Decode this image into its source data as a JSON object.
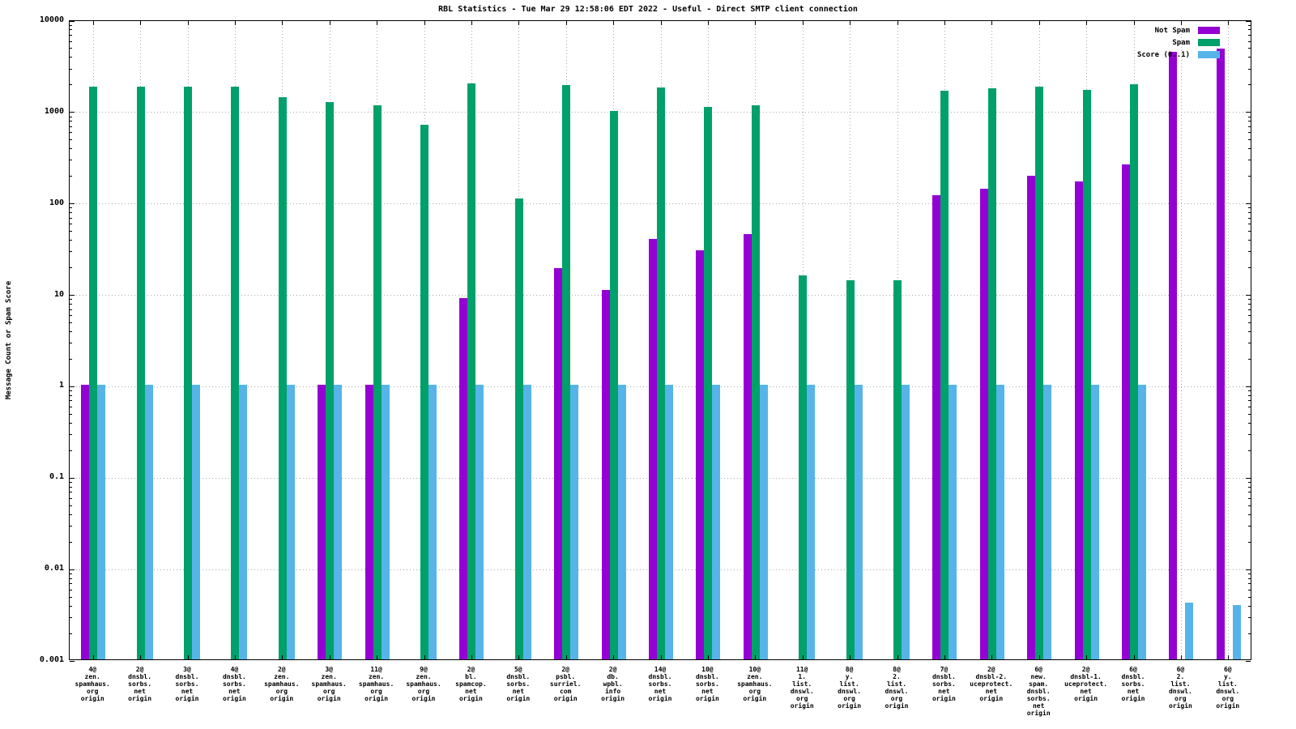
{
  "title": "RBL Statistics - Tue Mar 29 12:58:06 EDT 2022 - Useful - Direct SMTP client connection",
  "ylabel": "Message Count or Spam Score",
  "chart_data": {
    "type": "bar",
    "yscale": "log",
    "ylim": [
      0.001,
      10000
    ],
    "ytick_labels": [
      "10000",
      "1000",
      "100",
      "10",
      "1",
      "0.1",
      "0.01",
      "0.001"
    ],
    "grid": true,
    "legend_position": "top-right",
    "categories": [
      [
        "4@",
        "zen.",
        "spamhaus.",
        "org",
        "origin"
      ],
      [
        "2@",
        "dnsbl.",
        "sorbs.",
        "net",
        "origin"
      ],
      [
        "3@",
        "dnsbl.",
        "sorbs.",
        "net",
        "origin"
      ],
      [
        "4@",
        "dnsbl.",
        "sorbs.",
        "net",
        "origin"
      ],
      [
        "2@",
        "zen.",
        "spamhaus.",
        "org",
        "origin"
      ],
      [
        "3@",
        "zen.",
        "spamhaus.",
        "org",
        "origin"
      ],
      [
        "11@",
        "zen.",
        "spamhaus.",
        "org",
        "origin"
      ],
      [
        "9@",
        "zen.",
        "spamhaus.",
        "org",
        "origin"
      ],
      [
        "2@",
        "bl.",
        "spamcop.",
        "net",
        "origin"
      ],
      [
        "5@",
        "dnsbl.",
        "sorbs.",
        "net",
        "origin"
      ],
      [
        "2@",
        "psbl.",
        "surriel.",
        "com",
        "origin"
      ],
      [
        "2@",
        "db.",
        "wpbl.",
        "info",
        "origin"
      ],
      [
        "14@",
        "dnsbl.",
        "sorbs.",
        "net",
        "origin"
      ],
      [
        "10@",
        "dnsbl.",
        "sorbs.",
        "net",
        "origin"
      ],
      [
        "10@",
        "zen.",
        "spamhaus.",
        "org",
        "origin"
      ],
      [
        "11@",
        "1.",
        "list.",
        "dnswl.",
        "org",
        "origin"
      ],
      [
        "8@",
        "y.",
        "list.",
        "dnswl.",
        "org",
        "origin"
      ],
      [
        "8@",
        "2.",
        "list.",
        "dnswl.",
        "org",
        "origin"
      ],
      [
        "7@",
        "dnsbl.",
        "sorbs.",
        "net",
        "origin"
      ],
      [
        "2@",
        "dnsbl-2.",
        "uceprotect.",
        "net",
        "origin"
      ],
      [
        "6@",
        "new.",
        "spam.",
        "dnsbl.",
        "sorbs.",
        "net",
        "origin"
      ],
      [
        "2@",
        "dnsbl-1.",
        "uceprotect.",
        "net",
        "origin"
      ],
      [
        "6@",
        "dnsbl.",
        "sorbs.",
        "net",
        "origin"
      ],
      [
        "6@",
        "2.",
        "list.",
        "dnswl.",
        "org",
        "origin"
      ],
      [
        "6@",
        "y.",
        "list.",
        "dnswl.",
        "org",
        "origin"
      ]
    ],
    "series": [
      {
        "name": "Not Spam",
        "color": "#9400d3",
        "values": [
          1,
          null,
          null,
          null,
          null,
          1,
          1,
          null,
          9,
          null,
          19,
          11,
          40,
          30,
          45,
          null,
          null,
          null,
          120,
          140,
          195,
          170,
          260,
          4400,
          4800
        ]
      },
      {
        "name": "Spam",
        "color": "#00a06a",
        "values": [
          1850,
          1850,
          1850,
          1850,
          1400,
          1250,
          1150,
          700,
          2000,
          110,
          1900,
          1000,
          1800,
          1100,
          1150,
          16,
          14,
          14,
          1650,
          1750,
          1850,
          1700,
          1950,
          null,
          null
        ]
      },
      {
        "name": "Score (0..1)",
        "color": "#56b4e9",
        "values": [
          1,
          1,
          1,
          1,
          1,
          1,
          1,
          1,
          1,
          1,
          1,
          1,
          1,
          1,
          1,
          1,
          1,
          1,
          1,
          1,
          1,
          1,
          1,
          0.0042,
          0.0039
        ]
      }
    ]
  }
}
